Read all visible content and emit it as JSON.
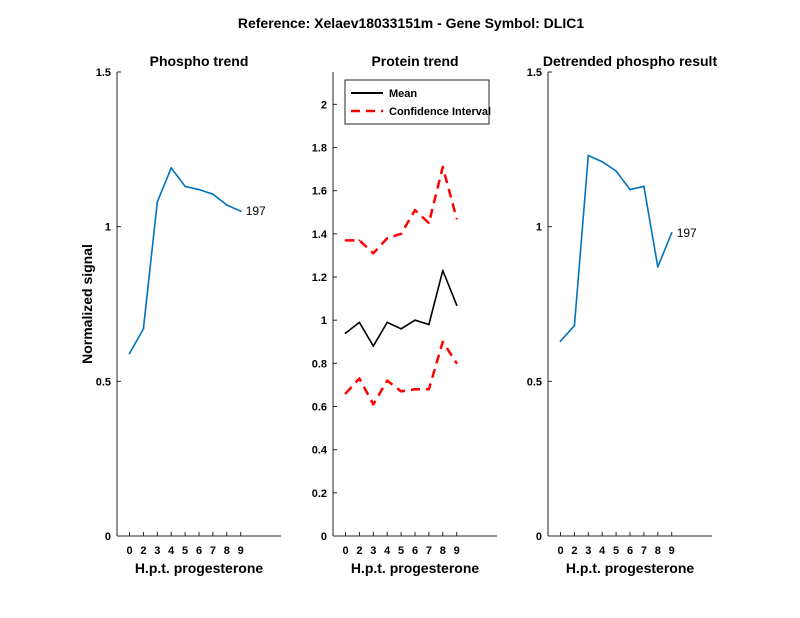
{
  "figure_title": "Reference:  Xelaev18033151m - Gene Symbol:  DLIC1",
  "chart_data": [
    {
      "type": "line",
      "title": "Phospho trend",
      "xlabel": "H.p.t. progesterone",
      "ylabel": "Normalized signal",
      "xlim": [
        -0.9,
        10.9
      ],
      "ylim": [
        0,
        1.5
      ],
      "x_ticks": [
        0,
        2,
        3,
        4,
        5,
        6,
        7,
        8,
        9
      ],
      "y_ticks": [
        0,
        0.5,
        1,
        1.5
      ],
      "y_tick_labels": [
        "0",
        "0.5",
        "1",
        "1.5"
      ],
      "x": [
        0,
        1,
        2,
        3,
        4,
        5,
        6,
        7,
        8
      ],
      "series": [
        {
          "values": [
            0.59,
            0.67,
            1.08,
            1.19,
            1.13,
            1.12,
            1.105,
            1.07,
            1.05
          ],
          "color": "#0072BD",
          "dash": "solid",
          "end_label": "197"
        }
      ]
    },
    {
      "type": "line",
      "title": "Protein trend",
      "xlabel": "H.p.t. progesterone",
      "ylabel": "",
      "xlim": [
        -0.9,
        10.9
      ],
      "ylim": [
        0,
        2.15
      ],
      "x_ticks": [
        0,
        2,
        3,
        4,
        5,
        6,
        7,
        8,
        9
      ],
      "y_ticks": [
        0,
        0.2,
        0.4,
        0.6,
        0.8,
        1,
        1.2,
        1.4,
        1.6,
        1.8,
        2
      ],
      "y_tick_labels": [
        "0",
        "0.2",
        "0.4",
        "0.6",
        "0.8",
        "1",
        "1.2",
        "1.4",
        "1.6",
        "1.8",
        "2"
      ],
      "x": [
        0,
        1,
        2,
        3,
        4,
        5,
        6,
        7,
        8
      ],
      "legend_position": "top-left",
      "series": [
        {
          "name": "Mean",
          "values": [
            0.94,
            0.99,
            0.88,
            0.99,
            0.96,
            1.0,
            0.98,
            1.23,
            1.07
          ],
          "color": "#000000",
          "dash": "solid"
        },
        {
          "name": "Confidence Interval",
          "values": [
            1.37,
            1.37,
            1.31,
            1.38,
            1.4,
            1.51,
            1.45,
            1.71,
            1.47
          ],
          "color": "#FF0000",
          "dash": "dashed"
        },
        {
          "values": [
            0.66,
            0.73,
            0.61,
            0.72,
            0.67,
            0.68,
            0.68,
            0.9,
            0.8
          ],
          "color": "#FF0000",
          "dash": "dashed"
        }
      ]
    },
    {
      "type": "line",
      "title": "Detrended phospho result",
      "xlabel": "H.p.t. progesterone",
      "ylabel": "",
      "xlim": [
        -0.9,
        10.9
      ],
      "ylim": [
        0,
        1.5
      ],
      "x_ticks": [
        0,
        2,
        3,
        4,
        5,
        6,
        7,
        8,
        9
      ],
      "y_ticks": [
        0,
        0.5,
        1,
        1.5
      ],
      "y_tick_labels": [
        "0",
        "0.5",
        "1",
        "1.5"
      ],
      "x": [
        0,
        1,
        2,
        3,
        4,
        5,
        6,
        7,
        8
      ],
      "series": [
        {
          "values": [
            0.63,
            0.68,
            1.23,
            1.21,
            1.18,
            1.12,
            1.13,
            0.87,
            0.98
          ],
          "color": "#0072BD",
          "dash": "solid",
          "end_label": "197"
        }
      ]
    }
  ]
}
